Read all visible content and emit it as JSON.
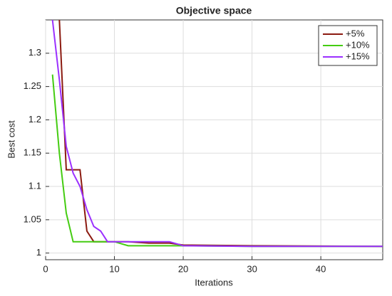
{
  "chart_data": {
    "type": "line",
    "title": "Objective space",
    "x_label": "Iterations",
    "y_label": "Best cost",
    "x": [
      1,
      2,
      3,
      4,
      5,
      6,
      7,
      8,
      9,
      10,
      12,
      15,
      18,
      20,
      30,
      49
    ],
    "series": [
      {
        "name": "+5%",
        "color": "#8b1a10",
        "values": [
          null,
          1.35,
          1.125,
          1.125,
          1.125,
          1.033,
          1.017,
          1.017,
          1.017,
          1.017,
          1.017,
          1.015,
          1.015,
          1.012,
          1.011,
          1.01
        ]
      },
      {
        "name": "+10%",
        "color": "#44cc11",
        "values": [
          1.268,
          1.15,
          1.06,
          1.017,
          1.017,
          1.017,
          1.017,
          1.017,
          1.017,
          1.017,
          1.011,
          1.011,
          1.011,
          1.011,
          1.01,
          1.01
        ]
      },
      {
        "name": "+15%",
        "color": "#9b30ff",
        "values": [
          1.35,
          1.26,
          1.16,
          1.12,
          1.1,
          1.065,
          1.04,
          1.033,
          1.017,
          1.017,
          1.017,
          1.017,
          1.017,
          1.011,
          1.01,
          1.01
        ]
      }
    ],
    "xlim": [
      0,
      49
    ],
    "xticks": [
      0,
      10,
      20,
      30,
      40
    ],
    "ylim": [
      0.99,
      1.35
    ],
    "yticks": [
      1,
      1.05,
      1.1,
      1.15,
      1.2,
      1.25,
      1.3
    ],
    "grid": true,
    "legend": "top-right"
  }
}
